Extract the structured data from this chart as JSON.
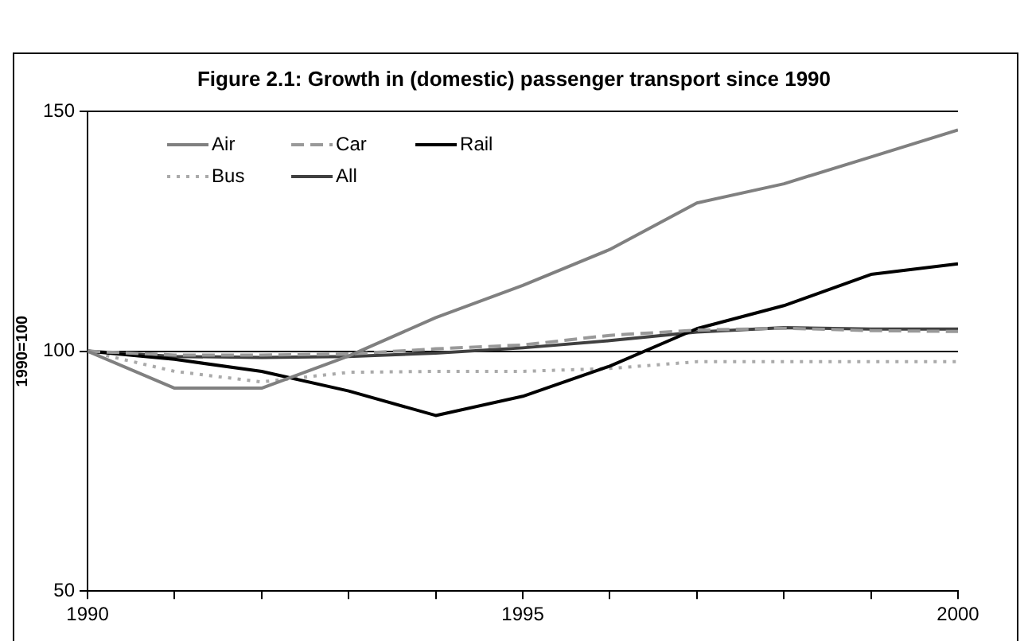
{
  "chart_data": {
    "type": "line",
    "title": "Figure 2.1: Growth in (domestic) passenger transport since 1990",
    "ylabel": "1990=100",
    "x": [
      1990,
      1991,
      1992,
      1993,
      1994,
      1995,
      1996,
      1997,
      1998,
      1999,
      2000
    ],
    "series": [
      {
        "name": "Air",
        "color": "#808080",
        "line_style": "solid",
        "values": [
          100,
          92.3,
          92.3,
          99,
          107,
          113.7,
          121.2,
          130.9,
          134.9,
          140.5,
          146.1
        ]
      },
      {
        "name": "Car",
        "color": "#999999",
        "line_style": "dashed",
        "values": [
          100,
          99.2,
          99.2,
          99.4,
          100.5,
          101.3,
          103.3,
          104.4,
          104.8,
          104.3,
          104.1
        ]
      },
      {
        "name": "Rail",
        "color": "#000000",
        "line_style": "solid",
        "values": [
          100,
          98.3,
          95.8,
          91.7,
          86.6,
          90.6,
          96.9,
          104.7,
          109.5,
          116,
          118.2
        ]
      },
      {
        "name": "Bus",
        "color": "#aaaaaa",
        "line_style": "dotted",
        "values": [
          100,
          95.8,
          93.6,
          95.6,
          95.8,
          95.8,
          96.4,
          97.8,
          97.8,
          97.8,
          97.8
        ]
      },
      {
        "name": "All",
        "color": "#404040",
        "line_style": "solid",
        "values": [
          100,
          98.9,
          98.7,
          98.9,
          99.6,
          100.7,
          102.2,
          104,
          104.9,
          104.6,
          104.6
        ]
      }
    ],
    "xlim": [
      1990,
      2000
    ],
    "xticks": [
      1990,
      {
        "value": 1991,
        "label": null
      },
      {
        "value": 1992,
        "label": null
      },
      {
        "value": 1993,
        "label": null
      },
      {
        "value": 1994,
        "label": null
      },
      1995,
      {
        "value": 1996,
        "label": null
      },
      {
        "value": 1997,
        "label": null
      },
      {
        "value": 1998,
        "label": null
      },
      {
        "value": 1999,
        "label": null
      },
      2000
    ],
    "ylim": [
      50,
      150
    ],
    "yticks": [
      50,
      100,
      150
    ],
    "grid": "y",
    "legend": "top left",
    "marker": "none"
  }
}
